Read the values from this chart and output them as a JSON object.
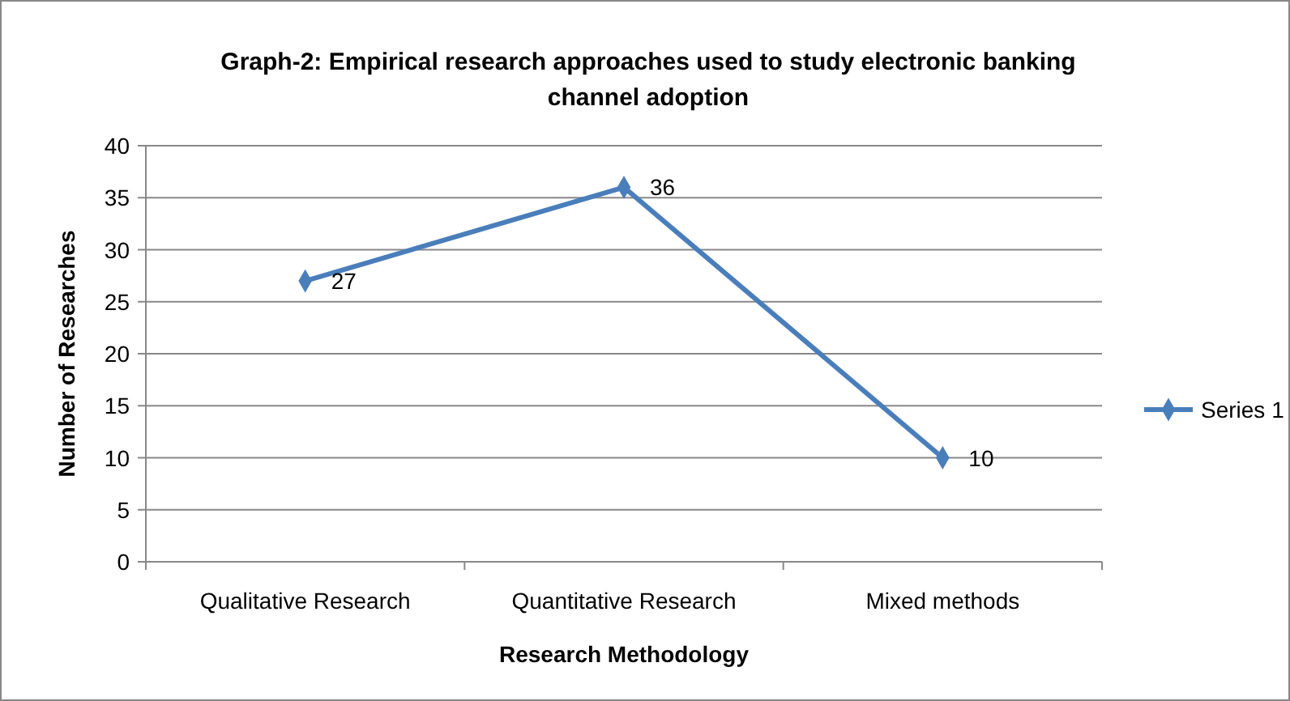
{
  "chart_data": {
    "type": "line",
    "title": "Graph-2: Empirical research approaches used to study electronic banking channel adoption",
    "xlabel": "Research Methodology",
    "ylabel": "Number of Researches",
    "categories": [
      "Qualitative Research",
      "Quantitative Research",
      "Mixed methods"
    ],
    "series": [
      {
        "name": "Series 1",
        "color": "#4a7ebb",
        "values": [
          27,
          36,
          10
        ]
      }
    ],
    "ylim": [
      0,
      40
    ],
    "yticks": [
      0,
      5,
      10,
      15,
      20,
      25,
      30,
      35,
      40
    ],
    "grid": "y",
    "legend": "right",
    "marker": "diamond",
    "line_style": "solid",
    "data_labels": true
  }
}
